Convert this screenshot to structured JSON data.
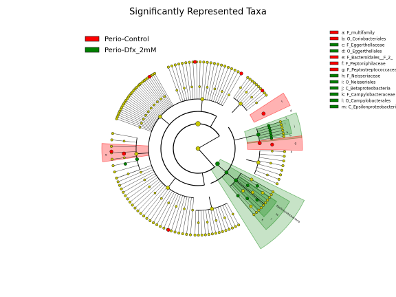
{
  "chart_data": {
    "type": "cladogram",
    "title": "Significantly Represented Taxa",
    "legend_groups": [
      {
        "name": "Perio-Control",
        "color": "#ff0000"
      },
      {
        "name": "Perio-Dfx_2mM",
        "color": "#008000"
      }
    ],
    "taxa": [
      {
        "key": "a",
        "label": "a: F_multifamily",
        "group": "Perio-Control",
        "color": "#ff0000"
      },
      {
        "key": "b",
        "label": "b: O_Coriobacteriales",
        "group": "Perio-Control",
        "color": "#ff0000"
      },
      {
        "key": "c",
        "label": "c: F_Eggerthellaceae",
        "group": "Perio-Dfx_2mM",
        "color": "#008000"
      },
      {
        "key": "d",
        "label": "d: O_Eggerthellales",
        "group": "Perio-Dfx_2mM",
        "color": "#008000"
      },
      {
        "key": "e",
        "label": "e: F_Bacteroidales__F_2_",
        "group": "Perio-Control",
        "color": "#ff0000"
      },
      {
        "key": "f",
        "label": "f: F_Peptoniphilaceae",
        "group": "Perio-Control",
        "color": "#ff0000"
      },
      {
        "key": "g",
        "label": "g: F_Peptostreptococcaceae",
        "group": "Perio-Control",
        "color": "#ff0000"
      },
      {
        "key": "h",
        "label": "h: F_Neisseriaceae",
        "group": "Perio-Dfx_2mM",
        "color": "#008000"
      },
      {
        "key": "i",
        "label": "i: O_Neisseriales",
        "group": "Perio-Dfx_2mM",
        "color": "#008000"
      },
      {
        "key": "j",
        "label": "j: C_Betaproteobacteria",
        "group": "Perio-Dfx_2mM",
        "color": "#008000"
      },
      {
        "key": "k",
        "label": "k: F_Campylobacteraceae",
        "group": "Perio-Dfx_2mM",
        "color": "#008000"
      },
      {
        "key": "l",
        "label": "l: O_Campylobacterales",
        "group": "Perio-Dfx_2mM",
        "color": "#008000"
      },
      {
        "key": "m",
        "label": "m: C_Epsilonproteobacteria",
        "group": "Perio-Dfx_2mM",
        "color": "#008000"
      }
    ],
    "clade_labels": [
      "a",
      "b",
      "c",
      "d",
      "e",
      "f",
      "g",
      "h",
      "i",
      "j",
      "k",
      "l",
      "m",
      "Betaproteobacteria",
      "Epsilonproteobacteria"
    ],
    "node_color_nonsignificant": "#c8c800",
    "colors": {
      "control": "#ff0000",
      "dfx": "#008000",
      "neutral": "#c8c800"
    }
  }
}
